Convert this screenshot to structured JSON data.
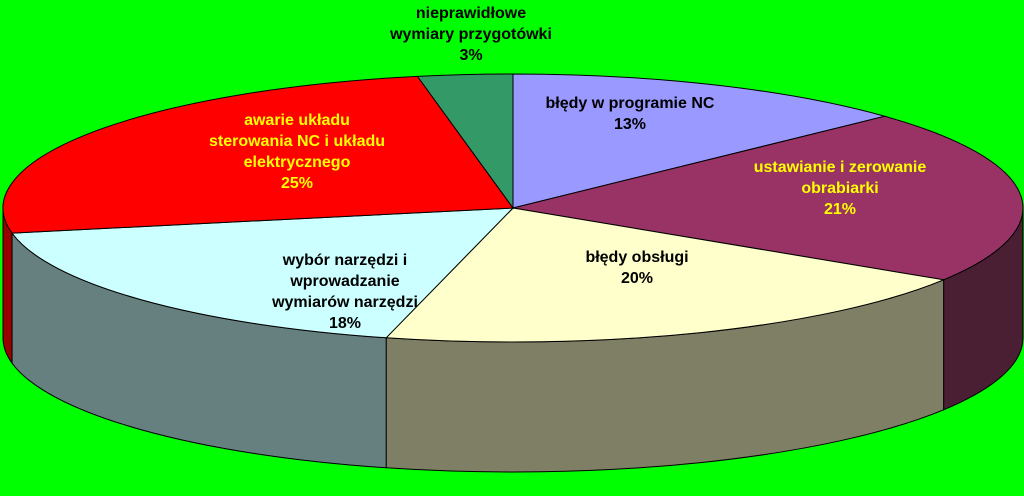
{
  "chart_data": {
    "type": "pie",
    "style": "3d",
    "title": "",
    "slices": [
      {
        "label_lines": [
          "błędy w programie NC"
        ],
        "percent": "13%",
        "value": 13,
        "color": "#9999ff",
        "side_color": "#6b6bb3",
        "label_color": "#000000"
      },
      {
        "label_lines": [
          "ustawianie i zerowanie",
          "obrabiarki"
        ],
        "percent": "21%",
        "value": 21,
        "color": "#993366",
        "side_color": "#4a1f33",
        "label_color": "#ffff00"
      },
      {
        "label_lines": [
          "błędy obsługi"
        ],
        "percent": "20%",
        "value": 20,
        "color": "#ffffcc",
        "side_color": "#7f7f66",
        "label_color": "#000000"
      },
      {
        "label_lines": [
          "wybór narzędzi i",
          "wprowadzanie",
          "wymiarów narzędzi"
        ],
        "percent": "18%",
        "value": 18,
        "color": "#ccffff",
        "side_color": "#668080",
        "label_color": "#000000"
      },
      {
        "label_lines": [
          "awarie układu",
          "sterowania NC i układu",
          "elektrycznego"
        ],
        "percent": "25%",
        "value": 25,
        "color": "#ff0000",
        "side_color": "#990000",
        "label_color": "#ffff00"
      },
      {
        "label_lines": [
          "nieprawidłowe",
          "wymiary przygotówki"
        ],
        "percent": "3%",
        "value": 3,
        "color": "#339966",
        "side_color": "#1f5c3d",
        "label_color": "#000000"
      }
    ],
    "background": "#00ff00",
    "legend": "none"
  }
}
